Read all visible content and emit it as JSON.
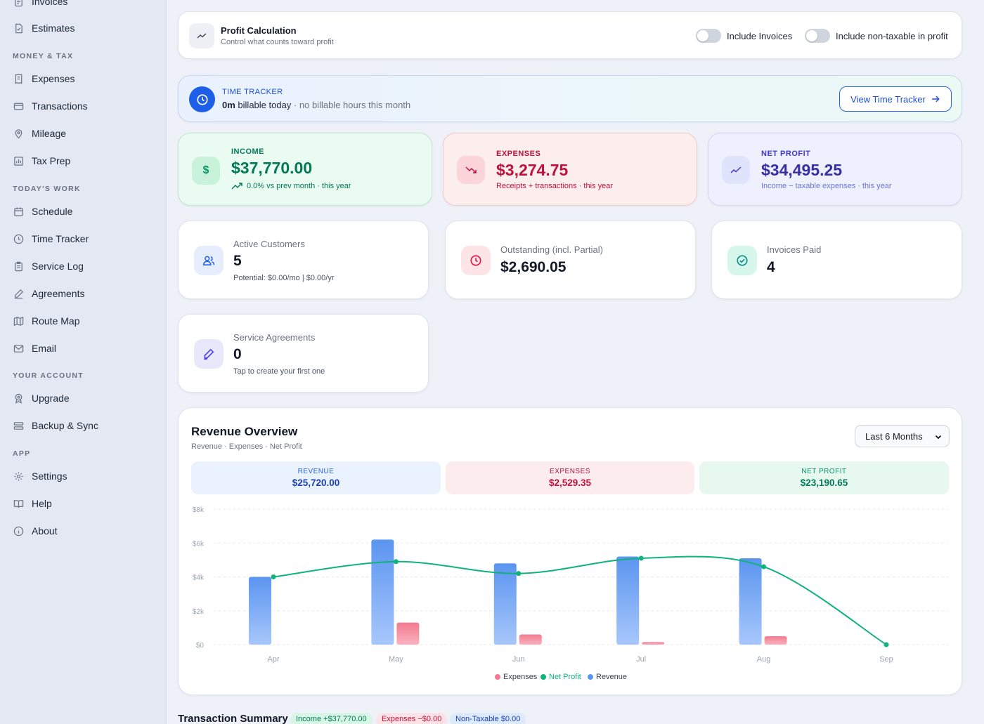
{
  "sidebar": {
    "items": [
      {
        "label": "Invoices",
        "icon": "invoice-icon"
      },
      {
        "label": "Estimates",
        "icon": "estimate-icon"
      },
      {
        "label": "Expenses",
        "icon": "receipt-icon"
      },
      {
        "label": "Transactions",
        "icon": "credit-card-icon"
      },
      {
        "label": "Mileage",
        "icon": "map-pin-icon"
      },
      {
        "label": "Tax Prep",
        "icon": "bar-chart-icon"
      },
      {
        "label": "Schedule",
        "icon": "calendar-icon"
      },
      {
        "label": "Time Tracker",
        "icon": "clock-icon"
      },
      {
        "label": "Service Log",
        "icon": "clipboard-icon"
      },
      {
        "label": "Agreements",
        "icon": "pen-icon"
      },
      {
        "label": "Route Map",
        "icon": "map-icon"
      },
      {
        "label": "Email",
        "icon": "mail-icon"
      },
      {
        "label": "Upgrade",
        "icon": "award-icon"
      },
      {
        "label": "Backup & Sync",
        "icon": "server-icon"
      },
      {
        "label": "Settings",
        "icon": "gear-icon"
      },
      {
        "label": "Help",
        "icon": "book-icon"
      },
      {
        "label": "About",
        "icon": "info-icon"
      }
    ],
    "sections": {
      "money_tax": "MONEY & TAX",
      "todays_work": "TODAY'S WORK",
      "your_account": "YOUR ACCOUNT",
      "app": "APP"
    }
  },
  "profit_calc": {
    "title": "Profit Calculation",
    "subtitle": "Control what counts toward profit",
    "toggle_invoices": "Include Invoices",
    "toggle_nontaxable": "Include non-taxable in profit"
  },
  "time_tracker": {
    "label": "TIME TRACKER",
    "hours": "0m",
    "billable": "billable today",
    "note": "· no billable hours this month",
    "button": "View Time Tracker"
  },
  "stats": {
    "income": {
      "label": "INCOME",
      "value": "$37,770.00",
      "sub": "0.0% vs prev month · this year"
    },
    "expenses": {
      "label": "EXPENSES",
      "value": "$3,274.75",
      "sub": "Receipts + transactions · this year"
    },
    "net_profit": {
      "label": "NET PROFIT",
      "value": "$34,495.25",
      "sub": "Income − taxable expenses · this year"
    }
  },
  "small_cards": {
    "active_customers": {
      "title": "Active Customers",
      "value": "5",
      "sub": "Potential: $0.00/mo | $0.00/yr"
    },
    "outstanding": {
      "title": "Outstanding (incl. Partial)",
      "value": "$2,690.05"
    },
    "invoices_paid": {
      "title": "Invoices Paid",
      "value": "4"
    },
    "service_agreements": {
      "title": "Service Agreements",
      "value": "0",
      "sub": "Tap to create your first one"
    }
  },
  "revenue_overview": {
    "title": "Revenue Overview",
    "subtitle": "Revenue · Expenses · Net Profit",
    "range_select": "Last 6 Months",
    "summary": {
      "revenue": {
        "label": "REVENUE",
        "value": "$25,720.00"
      },
      "expenses": {
        "label": "EXPENSES",
        "value": "$2,529.35"
      },
      "net_profit": {
        "label": "NET PROFIT",
        "value": "$23,190.65"
      }
    }
  },
  "chart_data": {
    "type": "bar",
    "categories": [
      "Apr",
      "May",
      "Jun",
      "Jul",
      "Aug",
      "Sep"
    ],
    "series": [
      {
        "name": "Revenue",
        "type": "bar",
        "values": [
          4000,
          6200,
          4800,
          5200,
          5100,
          0
        ]
      },
      {
        "name": "Expenses",
        "type": "bar",
        "values": [
          0,
          1300,
          600,
          150,
          500,
          0
        ]
      },
      {
        "name": "Net Profit",
        "type": "line",
        "values": [
          4000,
          4900,
          4200,
          5100,
          4600,
          0
        ]
      }
    ],
    "y_ticks": [
      "$0",
      "$2k",
      "$4k",
      "$6k",
      "$8k"
    ],
    "ylim": [
      0,
      8000
    ],
    "legend": [
      "Expenses",
      "Net Profit",
      "Revenue"
    ],
    "legend_position": "bottom",
    "grid": true,
    "colors": {
      "revenue": "#5b95f0",
      "expenses": "#f27a8f",
      "net_profit": "#10b37a"
    }
  },
  "transaction_summary": {
    "title": "Transaction Summary",
    "income": "Income +$37,770.00",
    "expenses": "Expenses −$0.00",
    "nontaxable": "Non-Taxable $0.00"
  }
}
